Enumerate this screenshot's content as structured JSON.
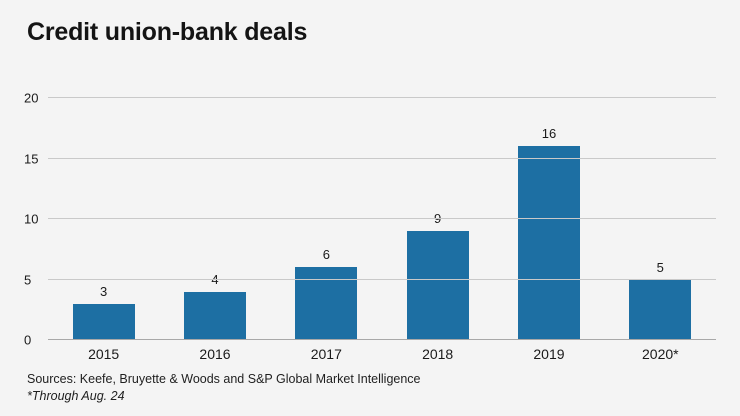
{
  "title": "Credit union-bank deals",
  "footer": {
    "sources": "Sources: Keefe, Bruyette & Woods and S&P Global Market Intelligence",
    "note": "*Through Aug. 24"
  },
  "colors": {
    "background": "#f4f4f4",
    "bar": "#1d6fa3",
    "gridline": "#c9c9c9",
    "zero_line": "#a8a8a8",
    "text": "#1a1a1a"
  },
  "chart_data": {
    "type": "bar",
    "title": "Credit union-bank deals",
    "categories": [
      "2015",
      "2016",
      "2017",
      "2018",
      "2019",
      "2020*"
    ],
    "values": [
      3,
      4,
      6,
      9,
      16,
      5
    ],
    "data_labels": [
      3,
      4,
      6,
      9,
      16,
      5
    ],
    "xlabel": "",
    "ylabel": "",
    "ylim": [
      0,
      20
    ],
    "yticks": [
      0,
      5,
      10,
      15,
      20
    ],
    "grid": true,
    "legend": "none",
    "data_labels_shown": true
  }
}
